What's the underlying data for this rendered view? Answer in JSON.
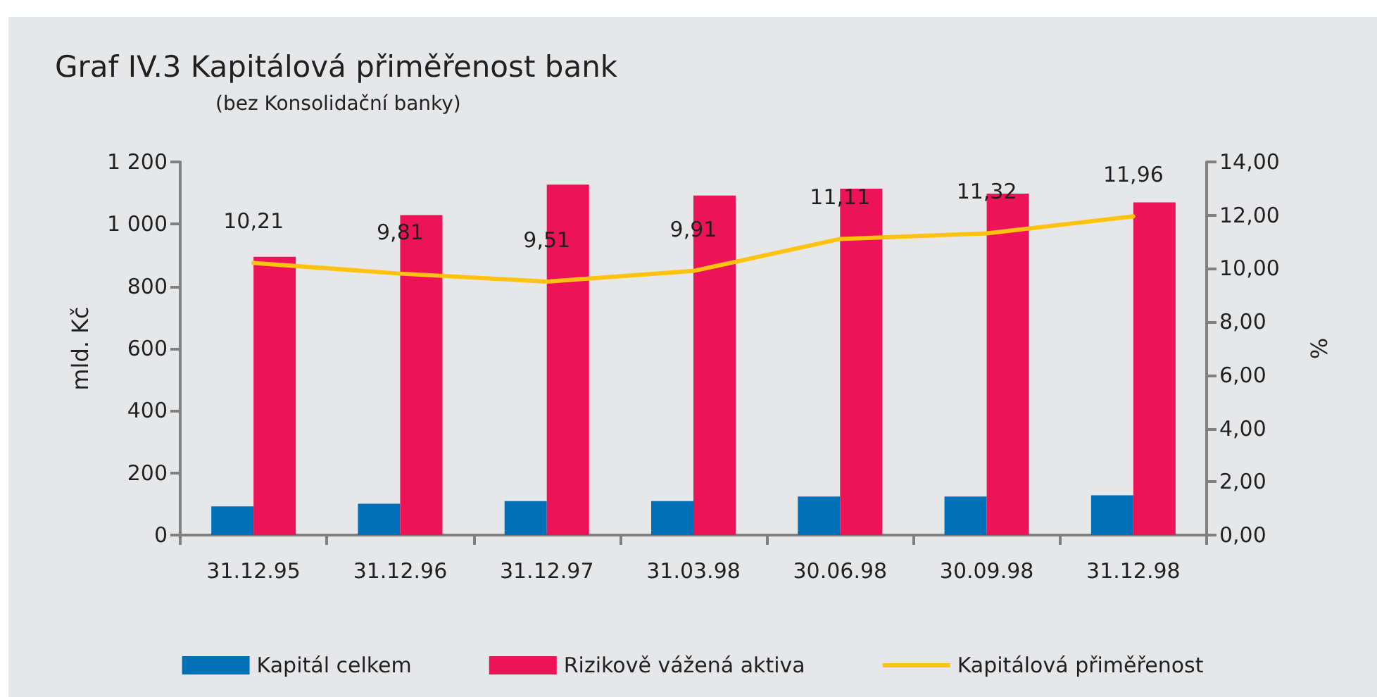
{
  "chart_data": {
    "type": "bar",
    "title": "Graf IV.3 Kapitálová přiměřenost bank",
    "subtitle": "(bez Konsolidační banky)",
    "ylabel": "mld. Kč",
    "y2label": "%",
    "categories": [
      "31.12.95",
      "31.12.96",
      "31.12.97",
      "31.03.98",
      "30.06.98",
      "30.09.98",
      "31.12.98"
    ],
    "series": [
      {
        "name": "Kapitál celkem",
        "color": "#0070b8",
        "values": [
          92,
          101,
          109,
          109,
          124,
          124,
          128
        ]
      },
      {
        "name": "Rizikově vážená aktiva",
        "color": "#ec1359",
        "values": [
          895,
          1029,
          1127,
          1092,
          1114,
          1098,
          1070
        ]
      },
      {
        "name": "Kapitálová přiměřenost",
        "type": "line",
        "axis": "y2",
        "color": "#ffc20e",
        "values": [
          10.21,
          9.81,
          9.51,
          9.91,
          11.11,
          11.32,
          11.96
        ],
        "value_labels": [
          "10,21",
          "9,81",
          "9,51",
          "9,91",
          "11,11",
          "11,32",
          "11,96"
        ]
      }
    ],
    "ylim": [
      0,
      1200
    ],
    "yticks": [
      0,
      200,
      400,
      600,
      800,
      {
        "value": 1000,
        "label": "1 000"
      },
      {
        "value": 1200,
        "label": "1 200"
      }
    ],
    "y2lim": [
      0,
      14
    ],
    "y2ticks": [
      {
        "value": 0,
        "label": "0,00"
      },
      {
        "value": 2,
        "label": "2,00"
      },
      {
        "value": 4,
        "label": "4,00"
      },
      {
        "value": 6,
        "label": "6,00"
      },
      {
        "value": 8,
        "label": "8,00"
      },
      {
        "value": 10,
        "label": "10,00"
      },
      {
        "value": 12,
        "label": "12,00"
      },
      {
        "value": 14,
        "label": "14,00"
      }
    ],
    "legend": "bottom",
    "marker": "none",
    "line_style": "solid"
  }
}
